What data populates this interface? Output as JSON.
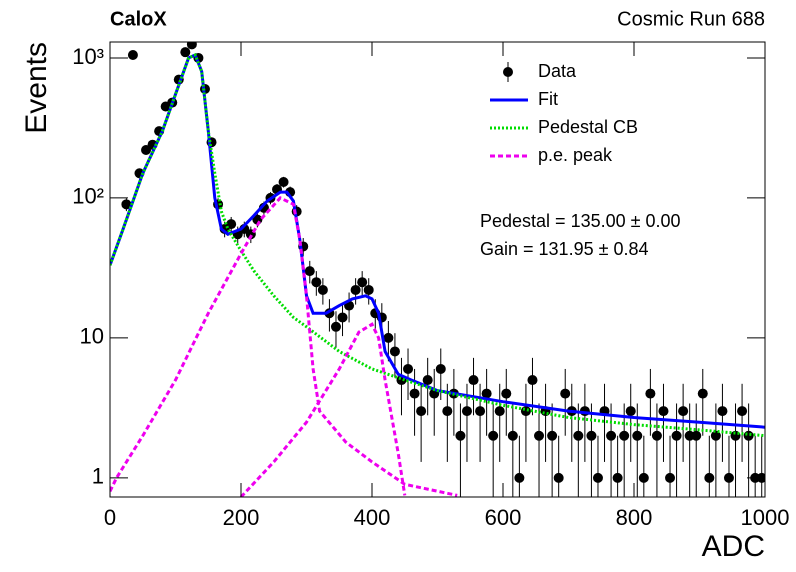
{
  "chart_data": {
    "type": "histogram",
    "title": "CaloX",
    "subtitle": "Cosmic Run 688",
    "x_label": "ADC",
    "y_label": "Events",
    "log_y": true,
    "legend": "upper right",
    "xlim": [
      0,
      1000
    ],
    "xticks": [
      0,
      200,
      400,
      600,
      800,
      1000
    ],
    "ylim": [
      0.73,
      1300
    ],
    "yticks": [
      1,
      10,
      {
        "value": 100,
        "label": "10²"
      },
      {
        "value": 1000,
        "label": "10³"
      }
    ],
    "annotations": [
      "Pedestal = 135.00 ± 0.00",
      "Gain = 131.95 ± 0.84"
    ],
    "series": [
      {
        "name": "Data",
        "color": "#000000",
        "style": "points",
        "x": [
          5,
          15,
          25,
          35,
          45,
          55,
          65,
          75,
          85,
          95,
          105,
          115,
          125,
          135,
          145,
          155,
          165,
          175,
          185,
          195,
          205,
          215,
          225,
          235,
          245,
          255,
          265,
          275,
          285,
          295,
          305,
          315,
          325,
          335,
          345,
          355,
          365,
          375,
          385,
          395,
          405,
          415,
          425,
          435,
          445,
          455,
          465,
          475,
          485,
          495,
          505,
          515,
          525,
          535,
          545,
          555,
          565,
          575,
          585,
          595,
          605,
          615,
          625,
          635,
          645,
          655,
          665,
          675,
          685,
          695,
          705,
          715,
          725,
          735,
          745,
          755,
          765,
          775,
          785,
          795,
          805,
          815,
          825,
          835,
          845,
          855,
          865,
          875,
          885,
          895,
          905,
          915,
          925,
          935,
          945,
          955,
          965,
          975,
          985,
          995
        ],
        "values": [
          null,
          null,
          90,
          1050,
          150,
          220,
          240,
          300,
          450,
          480,
          700,
          1100,
          1250,
          1000,
          600,
          250,
          90,
          60,
          65,
          55,
          60,
          55,
          70,
          85,
          100,
          115,
          130,
          110,
          80,
          45,
          30,
          25,
          22,
          15,
          12,
          14,
          17,
          22,
          25,
          22,
          15,
          14,
          10,
          8,
          5,
          6,
          4,
          3,
          5,
          4,
          6,
          3,
          4,
          2,
          3,
          5,
          3,
          4,
          2,
          3,
          4,
          2,
          1,
          3,
          5,
          2,
          3,
          2,
          1,
          4,
          3,
          2,
          3,
          2,
          1,
          3,
          2,
          1,
          2,
          3,
          2,
          1,
          4,
          2,
          3,
          1,
          2,
          3,
          2,
          2,
          4,
          1,
          2,
          3,
          1,
          2,
          3,
          2,
          1,
          1
        ],
        "errors": [
          null,
          null,
          9.5,
          32.4,
          12.2,
          14.8,
          15.5,
          17.3,
          21.2,
          21.9,
          26.5,
          33.2,
          35.4,
          31.6,
          24.5,
          15.8,
          9.5,
          7.7,
          8.1,
          7.4,
          7.7,
          7.4,
          8.4,
          9.2,
          10,
          10.7,
          11.4,
          10.5,
          8.9,
          6.7,
          5.5,
          5,
          4.7,
          3.9,
          3.5,
          3.7,
          4.1,
          4.7,
          5,
          4.7,
          3.9,
          3.7,
          3.2,
          2.8,
          2.2,
          2.4,
          2,
          1.7,
          2.2,
          2,
          2.4,
          1.7,
          2,
          1.4,
          1.7,
          2.2,
          1.7,
          2,
          1.4,
          1.7,
          2,
          1.4,
          1,
          1.7,
          2.2,
          1.4,
          1.7,
          1.4,
          1,
          2,
          1.7,
          1.4,
          1.7,
          1.4,
          1,
          1.7,
          1.4,
          1,
          1.4,
          1.7,
          1.4,
          1,
          2,
          1.4,
          1.7,
          1,
          1.4,
          1.7,
          1.4,
          1.4,
          2,
          1,
          1.4,
          1.7,
          1,
          1.4,
          1.7,
          1.4,
          1,
          1
        ]
      },
      {
        "name": "Fit",
        "color": "#0000ff",
        "style": "solid",
        "x": [
          0,
          20,
          50,
          80,
          100,
          120,
          130,
          140,
          150,
          160,
          170,
          180,
          200,
          220,
          240,
          260,
          270,
          280,
          290,
          300,
          310,
          330,
          350,
          370,
          390,
          400,
          410,
          420,
          440,
          460,
          500,
          600,
          700,
          800,
          900,
          1000
        ],
        "values": [
          33,
          60,
          150,
          300,
          550,
          1000,
          1050,
          800,
          300,
          100,
          60,
          55,
          60,
          75,
          95,
          110,
          110,
          95,
          50,
          20,
          15,
          15,
          17,
          19,
          20,
          19,
          15,
          8,
          5.5,
          5,
          4.2,
          3.5,
          3,
          2.7,
          2.5,
          2.3
        ]
      },
      {
        "name": "Pedestal CB",
        "color": "#00dd00",
        "style": "dotted",
        "x": [
          0,
          20,
          50,
          80,
          100,
          120,
          130,
          140,
          150,
          160,
          170,
          180,
          200,
          220,
          250,
          280,
          300,
          350,
          400,
          450,
          500,
          600,
          700,
          800,
          900,
          1000
        ],
        "values": [
          33,
          60,
          150,
          300,
          550,
          1000,
          1050,
          800,
          300,
          150,
          80,
          60,
          42,
          30,
          20,
          14,
          12,
          8,
          6,
          5,
          4.2,
          3.3,
          2.7,
          2.4,
          2.2,
          2
        ]
      },
      {
        "name": "p.e. peak",
        "color": "#ee00ee",
        "style": "dashed",
        "x": [
          0,
          10,
          50,
          100,
          150,
          200,
          230,
          260,
          280,
          290,
          300,
          310,
          320,
          360,
          400,
          450,
          530,
          null,
          200,
          250,
          300,
          350,
          380,
          400,
          410,
          420,
          440,
          450
        ],
        "values": [
          0.8,
          1,
          2,
          5,
          15,
          40,
          70,
          100,
          90,
          50,
          20,
          6,
          3,
          1.8,
          1.3,
          0.9,
          0.75,
          null,
          0.73,
          1.3,
          2.5,
          6,
          11,
          12.5,
          10,
          5,
          1.5,
          0.75
        ]
      }
    ]
  }
}
